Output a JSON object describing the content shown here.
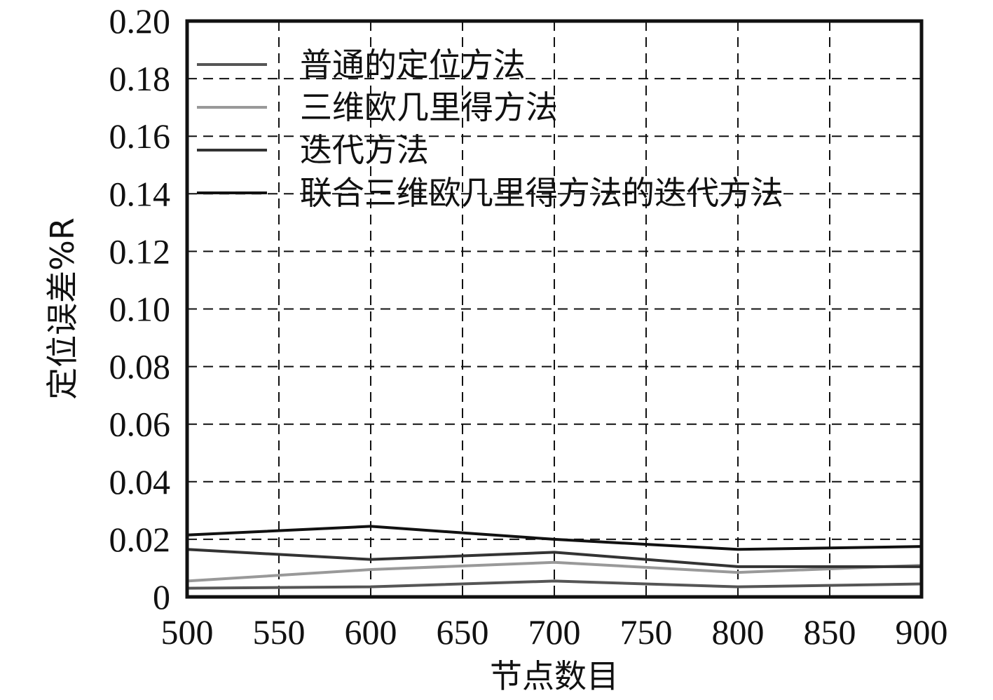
{
  "chart_data": {
    "type": "line",
    "title": "",
    "xlabel": "节点数目",
    "ylabel": "定位误差%R",
    "x": [
      500,
      600,
      700,
      800,
      900
    ],
    "xlim": [
      500,
      900
    ],
    "ylim": [
      0,
      0.2
    ],
    "x_ticks": [
      500,
      550,
      600,
      650,
      700,
      750,
      800,
      850,
      900
    ],
    "x_tick_labels": [
      "500",
      "550",
      "600",
      "650",
      "700",
      "750",
      "800",
      "850",
      "900"
    ],
    "y_ticks": [
      0,
      0.02,
      0.04,
      0.06,
      0.08,
      0.1,
      0.12,
      0.14,
      0.16,
      0.18,
      0.2
    ],
    "y_tick_labels": [
      "0",
      "0.02",
      "0.04",
      "0.06",
      "0.08",
      "0.10",
      "0.12",
      "0.14",
      "0.16",
      "0.18",
      "0.20"
    ],
    "grid": true,
    "grid_style": "dashed",
    "legend_position": "top-left",
    "series": [
      {
        "name": "普通的定位方法",
        "color": "#555555",
        "values": [
          0.003,
          0.0035,
          0.0055,
          0.0035,
          0.0045
        ]
      },
      {
        "name": "三维欧几里得方法",
        "color": "#999999",
        "values": [
          0.0055,
          0.0095,
          0.012,
          0.0085,
          0.011
        ]
      },
      {
        "name": "迭代方法",
        "color": "#333333",
        "values": [
          0.0165,
          0.013,
          0.0155,
          0.0105,
          0.0105
        ]
      },
      {
        "name": "联合三维欧几里得方法的迭代方法",
        "color": "#111111",
        "values": [
          0.0215,
          0.0245,
          0.02,
          0.0165,
          0.0175
        ]
      }
    ]
  }
}
